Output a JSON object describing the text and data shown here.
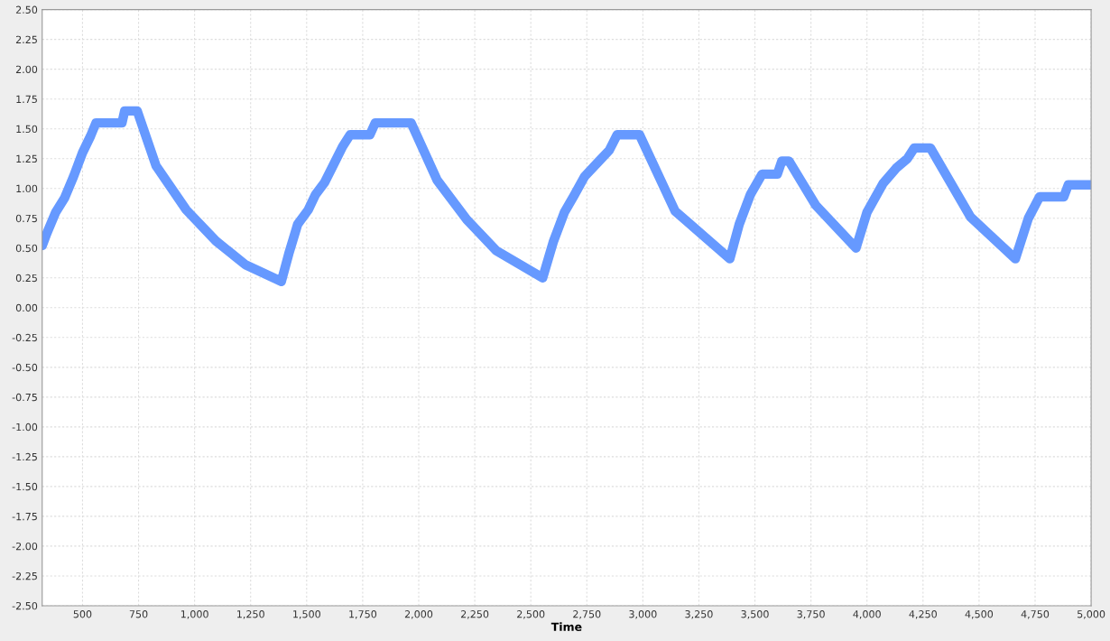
{
  "chart_data": {
    "type": "line",
    "xlabel": "Time",
    "series": [
      {
        "color": "#6699ff",
        "x": [
          320,
          340,
          380,
          420,
          460,
          500,
          536,
          560,
          676,
          688,
          744,
          828,
          963,
          1095,
          1227,
          1387,
          1420,
          1460,
          1507,
          1540,
          1580,
          1620,
          1660,
          1694,
          1782,
          1806,
          1966,
          2082,
          2214,
          2345,
          2553,
          2600,
          2650,
          2693,
          2740,
          2800,
          2850,
          2885,
          2985,
          3144,
          3388,
          3430,
          3480,
          3532,
          3600,
          3620,
          3652,
          3771,
          3951,
          4000,
          4071,
          4130,
          4180,
          4211,
          4283,
          4462,
          4662,
          4720,
          4770,
          4878,
          4898,
          5000
        ],
        "values": [
          0.52,
          0.62,
          0.8,
          0.92,
          1.1,
          1.3,
          1.44,
          1.55,
          1.55,
          1.65,
          1.65,
          1.19,
          0.82,
          0.56,
          0.36,
          0.22,
          0.45,
          0.7,
          0.82,
          0.95,
          1.05,
          1.2,
          1.35,
          1.45,
          1.45,
          1.55,
          1.55,
          1.07,
          0.74,
          0.48,
          0.25,
          0.55,
          0.8,
          0.94,
          1.1,
          1.22,
          1.32,
          1.45,
          1.45,
          0.81,
          0.41,
          0.7,
          0.95,
          1.12,
          1.12,
          1.23,
          1.23,
          0.86,
          0.5,
          0.8,
          1.04,
          1.17,
          1.25,
          1.34,
          1.34,
          0.76,
          0.41,
          0.75,
          0.93,
          0.93,
          1.03,
          1.03
        ]
      }
    ],
    "xlim": [
      320,
      5000
    ],
    "xticks": [
      500,
      750,
      {
        "value": 1000,
        "label": "1,000"
      },
      {
        "value": 1250,
        "label": "1,250"
      },
      {
        "value": 1500,
        "label": "1,500"
      },
      {
        "value": 1750,
        "label": "1,750"
      },
      {
        "value": 2000,
        "label": "2,000"
      },
      {
        "value": 2250,
        "label": "2,250"
      },
      {
        "value": 2500,
        "label": "2,500"
      },
      {
        "value": 2750,
        "label": "2,750"
      },
      {
        "value": 3000,
        "label": "3,000"
      },
      {
        "value": 3250,
        "label": "3,250"
      },
      {
        "value": 3500,
        "label": "3,500"
      },
      {
        "value": 3750,
        "label": "3,750"
      },
      {
        "value": 4000,
        "label": "4,000"
      },
      {
        "value": 4250,
        "label": "4,250"
      },
      {
        "value": 4500,
        "label": "4,500"
      },
      {
        "value": 4750,
        "label": "4,750"
      },
      {
        "value": 5000,
        "label": "5,000"
      }
    ],
    "ylim": [
      -2.5,
      2.5
    ],
    "yticks": [
      {
        "value": -2.5,
        "label": "-2.50"
      },
      {
        "value": -2.25,
        "label": "-2.25"
      },
      {
        "value": -2,
        "label": "-2.00"
      },
      {
        "value": -1.75,
        "label": "-1.75"
      },
      {
        "value": -1.5,
        "label": "-1.50"
      },
      {
        "value": -1.25,
        "label": "-1.25"
      },
      {
        "value": -1,
        "label": "-1.00"
      },
      {
        "value": -0.75,
        "label": "-0.75"
      },
      {
        "value": -0.5,
        "label": "-0.50"
      },
      {
        "value": -0.25,
        "label": "-0.25"
      },
      {
        "value": 0,
        "label": "0.00"
      },
      {
        "value": 0.25,
        "label": "0.25"
      },
      {
        "value": 0.5,
        "label": "0.50"
      },
      {
        "value": 0.75,
        "label": "0.75"
      },
      {
        "value": 1,
        "label": "1.00"
      },
      {
        "value": 1.25,
        "label": "1.25"
      },
      {
        "value": 1.5,
        "label": "1.50"
      },
      {
        "value": 1.75,
        "label": "1.75"
      },
      {
        "value": 2,
        "label": "2.00"
      },
      {
        "value": 2.25,
        "label": "2.25"
      },
      {
        "value": 2.5,
        "label": "2.50"
      }
    ],
    "grid": true,
    "line_style": "solid",
    "marker": "none"
  }
}
